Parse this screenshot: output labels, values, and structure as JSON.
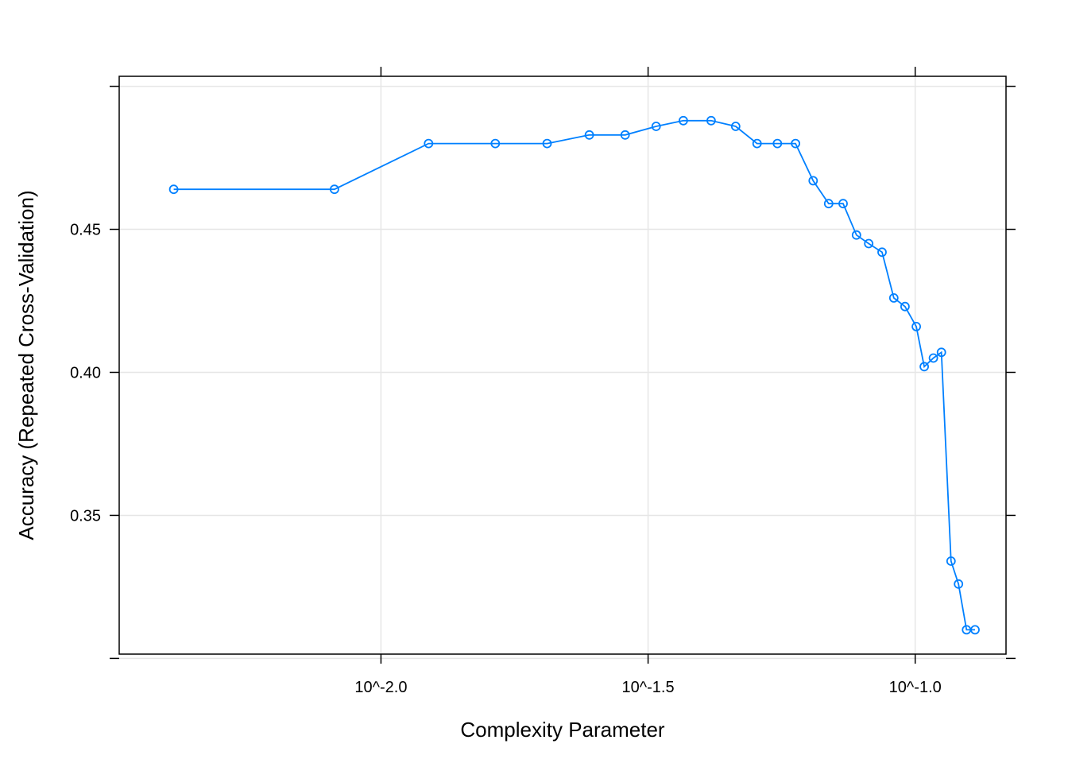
{
  "chart_data": {
    "type": "line",
    "title": "",
    "xlabel": "Complexity Parameter",
    "ylabel": "Accuracy (Repeated Cross-Validation)",
    "x_scale": "log10",
    "xlim_log10": [
      -2.49,
      -0.83
    ],
    "ylim": [
      0.3015,
      0.5035
    ],
    "x_ticks": [
      {
        "label": "10^-2.0",
        "log10": -2.0
      },
      {
        "label": "10^-1.5",
        "log10": -1.5
      },
      {
        "label": "10^-1.0",
        "log10": -1.0
      }
    ],
    "y_ticks": [
      {
        "label": "",
        "value": 0.3
      },
      {
        "label": "0.35",
        "value": 0.35
      },
      {
        "label": "0.40",
        "value": 0.4
      },
      {
        "label": "0.45",
        "value": 0.45
      },
      {
        "label": "",
        "value": 0.5
      }
    ],
    "grid": true,
    "legend": "none",
    "series_color": "#0080ff",
    "series": [
      {
        "log10_x": [
          -2.388,
          -2.087,
          -1.911,
          -1.786,
          -1.689,
          -1.61,
          -1.543,
          -1.485,
          -1.434,
          -1.382,
          -1.336,
          -1.296,
          -1.258,
          -1.224,
          -1.191,
          -1.162,
          -1.135,
          -1.11,
          -1.087,
          -1.062,
          -1.04,
          -1.019,
          -0.998,
          -0.983,
          -0.966,
          -0.951,
          -0.933,
          -0.919,
          -0.904,
          -0.888
        ],
        "values": [
          0.464,
          0.464,
          0.48,
          0.48,
          0.48,
          0.483,
          0.483,
          0.486,
          0.488,
          0.488,
          0.486,
          0.48,
          0.48,
          0.48,
          0.467,
          0.459,
          0.459,
          0.448,
          0.445,
          0.442,
          0.426,
          0.423,
          0.416,
          0.402,
          0.405,
          0.407,
          0.334,
          0.326,
          0.31,
          0.31
        ]
      }
    ]
  }
}
